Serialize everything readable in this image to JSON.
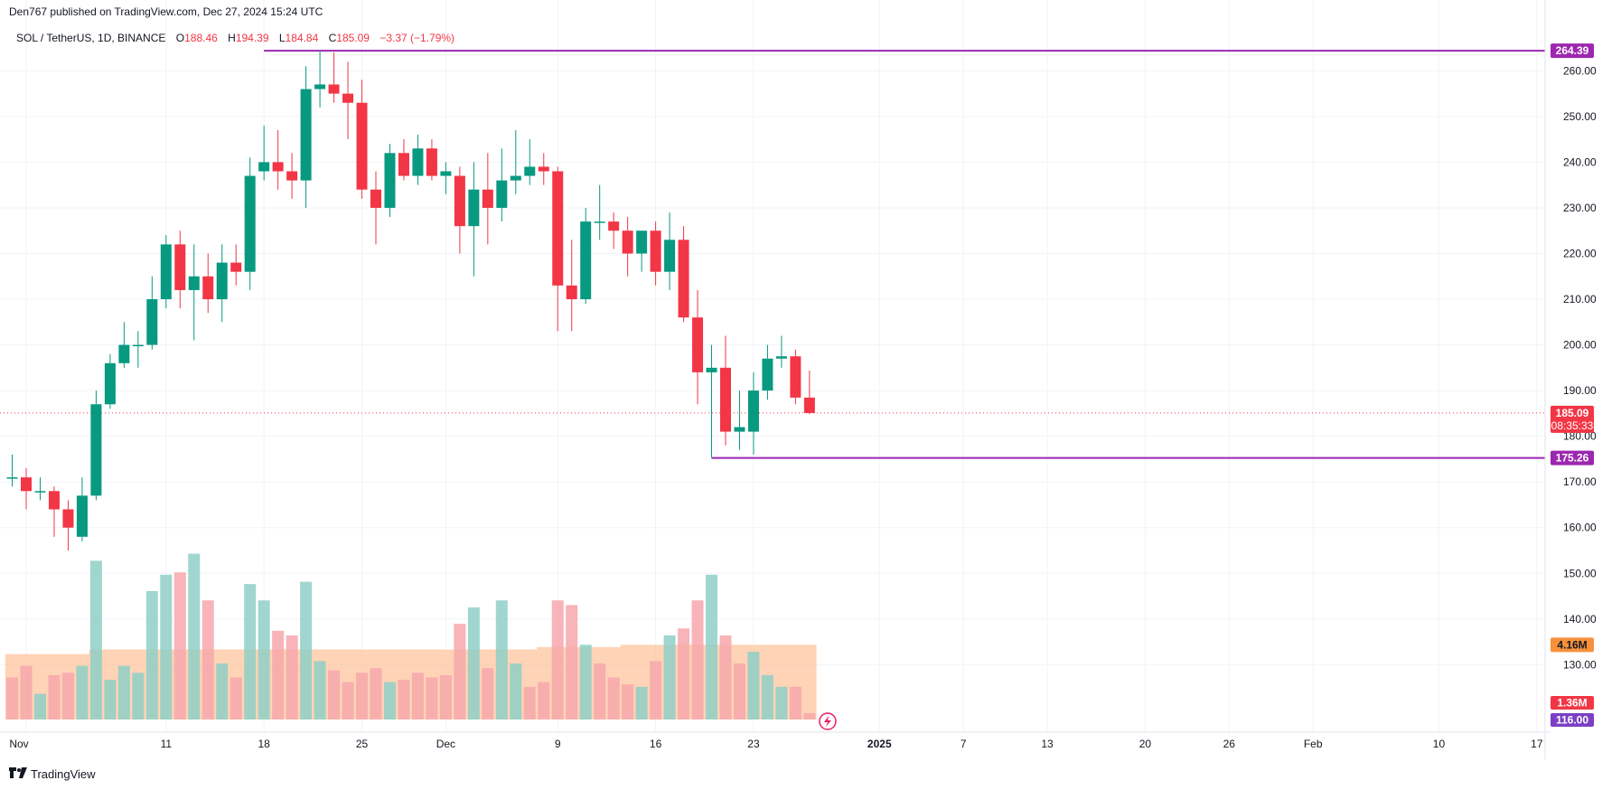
{
  "header": {
    "published_text": "Den767 published on TradingView.com, Dec 27, 2024 15:24 UTC"
  },
  "legend": {
    "symbol": "SOL / TetherUS, 1D, BINANCE",
    "o_label": "O",
    "o_value": "188.46",
    "h_label": "H",
    "h_value": "194.39",
    "l_label": "L",
    "l_value": "184.84",
    "c_label": "C",
    "c_value": "185.09",
    "change": "−3.37 (−1.79%)"
  },
  "colors": {
    "up": "#089981",
    "down": "#f23645",
    "up_volume": "#8fcfc7",
    "down_volume": "#f7a7ab",
    "volume_ma_fill": "#ffc49e",
    "level_line": "#9c27b0",
    "grid": "#f0f3fa",
    "axis_text": "#131722"
  },
  "price_badges": {
    "high_level": "264.39",
    "last_price": "185.09",
    "countdown": "08:35:33",
    "low_level": "175.26",
    "volume_ma": "4.16M",
    "volume_last": "1.36M",
    "bottom_value": "116.00"
  },
  "footer": {
    "brand": "TradingView"
  },
  "chart_data": {
    "type": "candlestick",
    "symbol": "SOL / TetherUS",
    "interval": "1D",
    "exchange": "BINANCE",
    "ylim": [
      118,
      266
    ],
    "y_ticks": [
      130,
      140,
      150,
      160,
      170,
      180,
      190,
      200,
      210,
      220,
      230,
      240,
      250,
      260
    ],
    "y_tick_labels": [
      "130.00",
      "140.00",
      "150.00",
      "160.00",
      "170.00",
      "180.00",
      "190.00",
      "200.00",
      "210.00",
      "220.00",
      "230.00",
      "240.00",
      "250.00",
      "260.00"
    ],
    "x_ticks": [
      {
        "label": "Nov",
        "day": 0
      },
      {
        "label": "11",
        "day": 10
      },
      {
        "label": "18",
        "day": 17
      },
      {
        "label": "25",
        "day": 24
      },
      {
        "label": "Dec",
        "day": 30
      },
      {
        "label": "9",
        "day": 38
      },
      {
        "label": "16",
        "day": 45
      },
      {
        "label": "23",
        "day": 52
      },
      {
        "label": "2025",
        "day": 61
      },
      {
        "label": "7",
        "day": 67
      },
      {
        "label": "13",
        "day": 73
      },
      {
        "label": "20",
        "day": 80
      },
      {
        "label": "26",
        "day": 86
      },
      {
        "label": "Feb",
        "day": 92
      },
      {
        "label": "10",
        "day": 101
      },
      {
        "label": "17",
        "day": 108
      }
    ],
    "horizontal_levels": [
      {
        "value": 264.39,
        "start_day": 17
      },
      {
        "value": 175.26,
        "start_day": 49
      }
    ],
    "candles": [
      {
        "day": -1,
        "o": 171,
        "h": 176,
        "l": 169,
        "c": 171
      },
      {
        "day": 0,
        "o": 171,
        "h": 173,
        "l": 164,
        "c": 168
      },
      {
        "day": 1,
        "o": 168,
        "h": 171,
        "l": 166,
        "c": 168
      },
      {
        "day": 2,
        "o": 168,
        "h": 169,
        "l": 158,
        "c": 164
      },
      {
        "day": 3,
        "o": 164,
        "h": 166,
        "l": 155,
        "c": 160
      },
      {
        "day": 4,
        "o": 158,
        "h": 171,
        "l": 157,
        "c": 167
      },
      {
        "day": 5,
        "o": 167,
        "h": 190,
        "l": 166,
        "c": 187
      },
      {
        "day": 6,
        "o": 187,
        "h": 198,
        "l": 186,
        "c": 196
      },
      {
        "day": 7,
        "o": 196,
        "h": 205,
        "l": 195,
        "c": 200
      },
      {
        "day": 8,
        "o": 200,
        "h": 203,
        "l": 195,
        "c": 200
      },
      {
        "day": 9,
        "o": 200,
        "h": 215,
        "l": 199,
        "c": 210
      },
      {
        "day": 10,
        "o": 210,
        "h": 224,
        "l": 208,
        "c": 222
      },
      {
        "day": 11,
        "o": 222,
        "h": 225,
        "l": 208,
        "c": 212
      },
      {
        "day": 12,
        "o": 212,
        "h": 222,
        "l": 201,
        "c": 215
      },
      {
        "day": 13,
        "o": 215,
        "h": 220,
        "l": 207,
        "c": 210
      },
      {
        "day": 14,
        "o": 210,
        "h": 222,
        "l": 205,
        "c": 218
      },
      {
        "day": 15,
        "o": 218,
        "h": 222,
        "l": 213,
        "c": 216
      },
      {
        "day": 16,
        "o": 216,
        "h": 241,
        "l": 212,
        "c": 237
      },
      {
        "day": 17,
        "o": 238,
        "h": 248,
        "l": 236,
        "c": 240
      },
      {
        "day": 18,
        "o": 240,
        "h": 247,
        "l": 234,
        "c": 238
      },
      {
        "day": 19,
        "o": 238,
        "h": 242,
        "l": 232,
        "c": 236
      },
      {
        "day": 20,
        "o": 236,
        "h": 261,
        "l": 230,
        "c": 256
      },
      {
        "day": 21,
        "o": 256,
        "h": 264.39,
        "l": 252,
        "c": 257
      },
      {
        "day": 22,
        "o": 257,
        "h": 264,
        "l": 253,
        "c": 255
      },
      {
        "day": 23,
        "o": 255,
        "h": 262,
        "l": 245,
        "c": 253
      },
      {
        "day": 24,
        "o": 253,
        "h": 258,
        "l": 232,
        "c": 234
      },
      {
        "day": 25,
        "o": 234,
        "h": 238,
        "l": 222,
        "c": 230
      },
      {
        "day": 26,
        "o": 230,
        "h": 244,
        "l": 228,
        "c": 242
      },
      {
        "day": 27,
        "o": 242,
        "h": 245,
        "l": 236,
        "c": 237
      },
      {
        "day": 28,
        "o": 237,
        "h": 246,
        "l": 235,
        "c": 243
      },
      {
        "day": 29,
        "o": 243,
        "h": 245,
        "l": 236,
        "c": 237
      },
      {
        "day": 30,
        "o": 237,
        "h": 240,
        "l": 233,
        "c": 238
      },
      {
        "day": 31,
        "o": 237,
        "h": 239,
        "l": 220,
        "c": 226
      },
      {
        "day": 32,
        "o": 226,
        "h": 240,
        "l": 215,
        "c": 234
      },
      {
        "day": 33,
        "o": 234,
        "h": 242,
        "l": 222,
        "c": 230
      },
      {
        "day": 34,
        "o": 230,
        "h": 243,
        "l": 227,
        "c": 236
      },
      {
        "day": 35,
        "o": 236,
        "h": 247,
        "l": 233,
        "c": 237
      },
      {
        "day": 36,
        "o": 237,
        "h": 245,
        "l": 235,
        "c": 239
      },
      {
        "day": 37,
        "o": 239,
        "h": 242,
        "l": 235,
        "c": 238
      },
      {
        "day": 38,
        "o": 238,
        "h": 239,
        "l": 203,
        "c": 213
      },
      {
        "day": 39,
        "o": 213,
        "h": 223,
        "l": 203,
        "c": 210
      },
      {
        "day": 40,
        "o": 210,
        "h": 230,
        "l": 209,
        "c": 227
      },
      {
        "day": 41,
        "o": 227,
        "h": 235,
        "l": 223,
        "c": 227
      },
      {
        "day": 42,
        "o": 227,
        "h": 229,
        "l": 221,
        "c": 225
      },
      {
        "day": 43,
        "o": 225,
        "h": 228,
        "l": 215,
        "c": 220
      },
      {
        "day": 44,
        "o": 220,
        "h": 225,
        "l": 216,
        "c": 225
      },
      {
        "day": 45,
        "o": 225,
        "h": 227,
        "l": 213,
        "c": 216
      },
      {
        "day": 46,
        "o": 216,
        "h": 229,
        "l": 212,
        "c": 223
      },
      {
        "day": 47,
        "o": 223,
        "h": 226,
        "l": 205,
        "c": 206
      },
      {
        "day": 48,
        "o": 206,
        "h": 212,
        "l": 187,
        "c": 194
      },
      {
        "day": 49,
        "o": 194,
        "h": 200,
        "l": 175.26,
        "c": 195
      },
      {
        "day": 50,
        "o": 195,
        "h": 202,
        "l": 178,
        "c": 181
      },
      {
        "day": 51,
        "o": 181,
        "h": 190,
        "l": 177,
        "c": 182
      },
      {
        "day": 52,
        "o": 181,
        "h": 194,
        "l": 176,
        "c": 190
      },
      {
        "day": 53,
        "o": 190,
        "h": 200,
        "l": 188,
        "c": 197
      },
      {
        "day": 54,
        "o": 197,
        "h": 202,
        "l": 195,
        "c": 197.5
      },
      {
        "day": 55,
        "o": 197.5,
        "h": 199,
        "l": 187,
        "c": 188.46
      },
      {
        "day": 56,
        "o": 188.46,
        "h": 194.39,
        "l": 184.84,
        "c": 185.09
      }
    ],
    "volume": [
      {
        "day": -1,
        "v": 9.0,
        "dir": "down"
      },
      {
        "day": 0,
        "v": 11.5,
        "dir": "down"
      },
      {
        "day": 1,
        "v": 5.5,
        "dir": "up"
      },
      {
        "day": 2,
        "v": 9.5,
        "dir": "down"
      },
      {
        "day": 3,
        "v": 10.0,
        "dir": "down"
      },
      {
        "day": 4,
        "v": 11.5,
        "dir": "up"
      },
      {
        "day": 5,
        "v": 34.0,
        "dir": "up"
      },
      {
        "day": 6,
        "v": 8.5,
        "dir": "up"
      },
      {
        "day": 7,
        "v": 11.5,
        "dir": "up"
      },
      {
        "day": 8,
        "v": 10.0,
        "dir": "up"
      },
      {
        "day": 9,
        "v": 27.5,
        "dir": "up"
      },
      {
        "day": 10,
        "v": 31.0,
        "dir": "up"
      },
      {
        "day": 11,
        "v": 31.5,
        "dir": "down"
      },
      {
        "day": 12,
        "v": 35.5,
        "dir": "up"
      },
      {
        "day": 13,
        "v": 25.5,
        "dir": "down"
      },
      {
        "day": 14,
        "v": 12.0,
        "dir": "up"
      },
      {
        "day": 15,
        "v": 9.0,
        "dir": "down"
      },
      {
        "day": 16,
        "v": 29.0,
        "dir": "up"
      },
      {
        "day": 17,
        "v": 25.5,
        "dir": "up"
      },
      {
        "day": 18,
        "v": 19.0,
        "dir": "down"
      },
      {
        "day": 19,
        "v": 18.0,
        "dir": "down"
      },
      {
        "day": 20,
        "v": 29.5,
        "dir": "up"
      },
      {
        "day": 21,
        "v": 12.5,
        "dir": "up"
      },
      {
        "day": 22,
        "v": 10.5,
        "dir": "down"
      },
      {
        "day": 23,
        "v": 8.0,
        "dir": "down"
      },
      {
        "day": 24,
        "v": 10.0,
        "dir": "down"
      },
      {
        "day": 25,
        "v": 11.0,
        "dir": "down"
      },
      {
        "day": 26,
        "v": 8.0,
        "dir": "up"
      },
      {
        "day": 27,
        "v": 8.5,
        "dir": "down"
      },
      {
        "day": 28,
        "v": 10.0,
        "dir": "down"
      },
      {
        "day": 29,
        "v": 9.0,
        "dir": "down"
      },
      {
        "day": 30,
        "v": 9.5,
        "dir": "down"
      },
      {
        "day": 31,
        "v": 20.5,
        "dir": "down"
      },
      {
        "day": 32,
        "v": 24.0,
        "dir": "up"
      },
      {
        "day": 33,
        "v": 11.0,
        "dir": "down"
      },
      {
        "day": 34,
        "v": 25.5,
        "dir": "up"
      },
      {
        "day": 35,
        "v": 12.0,
        "dir": "up"
      },
      {
        "day": 36,
        "v": 7.0,
        "dir": "down"
      },
      {
        "day": 37,
        "v": 8.0,
        "dir": "down"
      },
      {
        "day": 38,
        "v": 25.5,
        "dir": "down"
      },
      {
        "day": 39,
        "v": 24.5,
        "dir": "down"
      },
      {
        "day": 40,
        "v": 16.0,
        "dir": "up"
      },
      {
        "day": 41,
        "v": 12.0,
        "dir": "down"
      },
      {
        "day": 42,
        "v": 9.0,
        "dir": "down"
      },
      {
        "day": 43,
        "v": 7.5,
        "dir": "down"
      },
      {
        "day": 44,
        "v": 7.0,
        "dir": "up"
      },
      {
        "day": 45,
        "v": 12.5,
        "dir": "down"
      },
      {
        "day": 46,
        "v": 18.0,
        "dir": "up"
      },
      {
        "day": 47,
        "v": 19.5,
        "dir": "down"
      },
      {
        "day": 48,
        "v": 25.5,
        "dir": "down"
      },
      {
        "day": 49,
        "v": 31.0,
        "dir": "up"
      },
      {
        "day": 50,
        "v": 18.0,
        "dir": "down"
      },
      {
        "day": 51,
        "v": 12.0,
        "dir": "down"
      },
      {
        "day": 52,
        "v": 14.5,
        "dir": "up"
      },
      {
        "day": 53,
        "v": 9.5,
        "dir": "up"
      },
      {
        "day": 54,
        "v": 7.0,
        "dir": "up"
      },
      {
        "day": 55,
        "v": 7.0,
        "dir": "down"
      },
      {
        "day": 56,
        "v": 1.36,
        "dir": "down"
      }
    ],
    "volume_ma_value": 4.16,
    "volume_last_value": 1.36,
    "volume_ma_levels": [
      14.0,
      14.0,
      14.0,
      14.0,
      14.0,
      14.0,
      15.0,
      15.0,
      15.0,
      15.0,
      15.0,
      15.0,
      15.0,
      15.0,
      15.0,
      15.0,
      15.0,
      15.0,
      15.0,
      15.0,
      15.0,
      15.0,
      15.0,
      15.0,
      15.0,
      15.0,
      15.0,
      15.0,
      15.0,
      15.0,
      15.0,
      15.0,
      15.0,
      15.0,
      15.0,
      15.0,
      15.0,
      15.0,
      15.5,
      15.5,
      15.5,
      15.5,
      15.5,
      15.5,
      16.0,
      16.0,
      16.0,
      16.0,
      16.0,
      16.0,
      16.0,
      16.0,
      16.0,
      16.0,
      16.0,
      16.0,
      16.0,
      16.0
    ]
  }
}
